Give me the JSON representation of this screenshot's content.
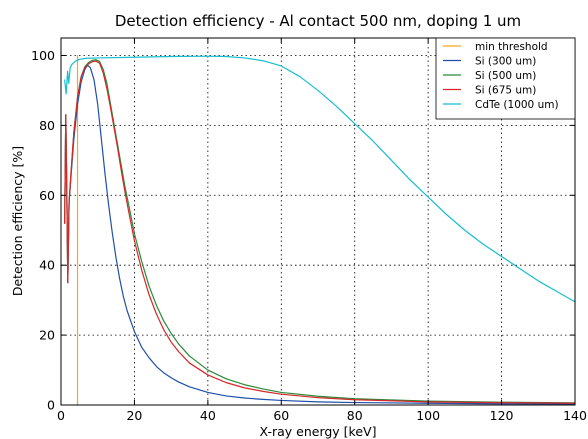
{
  "chart_data": {
    "type": "line",
    "title": "Detection efficiency - Al contact 500 nm, doping 1 um",
    "xlabel": "X-ray energy [keV]",
    "ylabel": "Detection efficiency [%]",
    "xlim": [
      0,
      140
    ],
    "ylim": [
      0,
      105
    ],
    "xticks": [
      0,
      20,
      40,
      60,
      80,
      100,
      120,
      140
    ],
    "yticks": [
      0,
      20,
      40,
      60,
      80,
      100
    ],
    "xtick_labels": [
      "0",
      "20",
      "40",
      "60",
      "80",
      "100",
      "120",
      "140"
    ],
    "ytick_labels": [
      "0",
      "20",
      "40",
      "60",
      "80",
      "100"
    ],
    "grid": true,
    "legend_position": "top-right",
    "series": [
      {
        "name": "min threshold",
        "color": "#f5a623",
        "points": [
          [
            4.5,
            0
          ],
          [
            4.5,
            100
          ]
        ]
      },
      {
        "name": "Si (300 um)",
        "color": "#1f4fa8",
        "points": [
          [
            1.0,
            52
          ],
          [
            1.3,
            83
          ],
          [
            1.6,
            60
          ],
          [
            1.85,
            35
          ],
          [
            2.2,
            58
          ],
          [
            2.7,
            65
          ],
          [
            3.5,
            76
          ],
          [
            4.5,
            86
          ],
          [
            5.5,
            92.5
          ],
          [
            6.5,
            96
          ],
          [
            7.2,
            97.2
          ],
          [
            8.0,
            96.5
          ],
          [
            9.0,
            93
          ],
          [
            10.0,
            86
          ],
          [
            11.0,
            76
          ],
          [
            12.0,
            66
          ],
          [
            13.0,
            57
          ],
          [
            14.0,
            49
          ],
          [
            15.0,
            42
          ],
          [
            16.0,
            36
          ],
          [
            17.0,
            31
          ],
          [
            18.0,
            27
          ],
          [
            20.0,
            21
          ],
          [
            22.0,
            16.5
          ],
          [
            24.0,
            13.5
          ],
          [
            26.0,
            11
          ],
          [
            28.0,
            9.2
          ],
          [
            30.0,
            7.8
          ],
          [
            32.0,
            6.6
          ],
          [
            35.0,
            5.2
          ],
          [
            40.0,
            3.6
          ],
          [
            45.0,
            2.6
          ],
          [
            50.0,
            2.0
          ],
          [
            55.0,
            1.6
          ],
          [
            60.0,
            1.3
          ],
          [
            70.0,
            0.9
          ],
          [
            80.0,
            0.7
          ],
          [
            100.0,
            0.5
          ],
          [
            120.0,
            0.35
          ],
          [
            140.0,
            0.3
          ]
        ]
      },
      {
        "name": "Si (500 um)",
        "color": "#2a8a3a",
        "points": [
          [
            1.0,
            52
          ],
          [
            1.3,
            83
          ],
          [
            1.6,
            60
          ],
          [
            1.85,
            35
          ],
          [
            2.2,
            58
          ],
          [
            2.7,
            66
          ],
          [
            3.5,
            78
          ],
          [
            4.5,
            88
          ],
          [
            5.5,
            94
          ],
          [
            6.5,
            96.8
          ],
          [
            7.5,
            98
          ],
          [
            8.5,
            98.6
          ],
          [
            9.5,
            98.8
          ],
          [
            10.5,
            98.3
          ],
          [
            11.5,
            96
          ],
          [
            12.5,
            92
          ],
          [
            13.5,
            86
          ],
          [
            14.5,
            80
          ],
          [
            15.5,
            74
          ],
          [
            16.5,
            68
          ],
          [
            17.5,
            62
          ],
          [
            18.5,
            57
          ],
          [
            20.0,
            49
          ],
          [
            22.0,
            41
          ],
          [
            24.0,
            34
          ],
          [
            26.0,
            28.5
          ],
          [
            28.0,
            24
          ],
          [
            30.0,
            20.5
          ],
          [
            32.0,
            17.5
          ],
          [
            35.0,
            14
          ],
          [
            40.0,
            10
          ],
          [
            45.0,
            7.5
          ],
          [
            50.0,
            5.8
          ],
          [
            55.0,
            4.6
          ],
          [
            60.0,
            3.6
          ],
          [
            70.0,
            2.5
          ],
          [
            80.0,
            1.8
          ],
          [
            100.0,
            1.1
          ],
          [
            120.0,
            0.8
          ],
          [
            140.0,
            0.6
          ]
        ]
      },
      {
        "name": "Si (675 um)",
        "color": "#d62728",
        "points": [
          [
            1.0,
            52
          ],
          [
            1.3,
            83
          ],
          [
            1.6,
            60
          ],
          [
            1.85,
            35
          ],
          [
            2.2,
            58
          ],
          [
            2.7,
            66
          ],
          [
            3.5,
            78
          ],
          [
            4.5,
            88
          ],
          [
            5.5,
            94
          ],
          [
            6.5,
            96.5
          ],
          [
            7.5,
            97.6
          ],
          [
            8.5,
            98.2
          ],
          [
            9.5,
            98.4
          ],
          [
            10.5,
            97.8
          ],
          [
            11.5,
            95
          ],
          [
            12.5,
            90.5
          ],
          [
            13.5,
            85
          ],
          [
            14.5,
            79
          ],
          [
            15.5,
            73
          ],
          [
            16.5,
            66.5
          ],
          [
            17.5,
            60.5
          ],
          [
            18.5,
            55
          ],
          [
            20.0,
            47
          ],
          [
            22.0,
            38.5
          ],
          [
            24.0,
            31.5
          ],
          [
            26.0,
            26
          ],
          [
            28.0,
            21.5
          ],
          [
            30.0,
            18
          ],
          [
            32.0,
            15.3
          ],
          [
            35.0,
            12
          ],
          [
            40.0,
            8.6
          ],
          [
            45.0,
            6.4
          ],
          [
            50.0,
            4.9
          ],
          [
            55.0,
            3.9
          ],
          [
            60.0,
            3.1
          ],
          [
            70.0,
            2.1
          ],
          [
            80.0,
            1.5
          ],
          [
            100.0,
            0.9
          ],
          [
            120.0,
            0.65
          ],
          [
            140.0,
            0.5
          ]
        ]
      },
      {
        "name": "CdTe (1000 um)",
        "color": "#17becf",
        "points": [
          [
            1.0,
            93
          ],
          [
            1.4,
            89
          ],
          [
            1.8,
            95.5
          ],
          [
            2.1,
            92
          ],
          [
            2.5,
            96.5
          ],
          [
            3.0,
            97.5
          ],
          [
            4.0,
            98.4
          ],
          [
            5.0,
            98.9
          ],
          [
            7.0,
            99.2
          ],
          [
            10.0,
            99.3
          ],
          [
            20.0,
            99.5
          ],
          [
            30.0,
            99.7
          ],
          [
            40.0,
            99.8
          ],
          [
            45.0,
            99.7
          ],
          [
            50.0,
            99.3
          ],
          [
            55.0,
            98.5
          ],
          [
            60.0,
            97
          ],
          [
            65.0,
            94
          ],
          [
            70.0,
            90
          ],
          [
            75.0,
            85.5
          ],
          [
            80.0,
            80.5
          ],
          [
            85.0,
            75.5
          ],
          [
            90.0,
            70
          ],
          [
            95.0,
            64.5
          ],
          [
            100.0,
            59.5
          ],
          [
            105.0,
            54.5
          ],
          [
            110.0,
            50
          ],
          [
            115.0,
            46
          ],
          [
            120.0,
            42.5
          ],
          [
            125.0,
            39
          ],
          [
            130.0,
            35.5
          ],
          [
            135.0,
            32.5
          ],
          [
            140.0,
            29.5
          ]
        ]
      }
    ]
  }
}
